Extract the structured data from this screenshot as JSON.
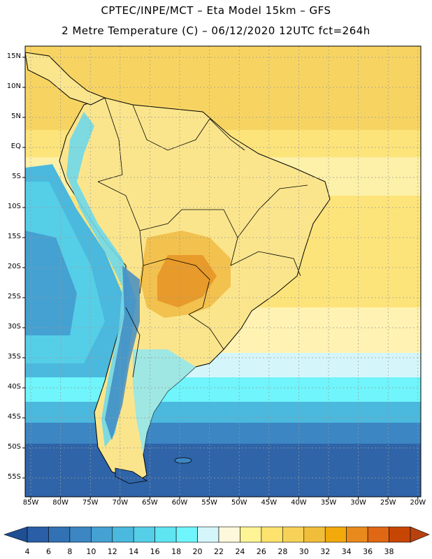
{
  "header": {
    "line1": "CPTEC/INPE/MCT –  Eta Model 15km – GFS",
    "line2": "2 Metre Temperature (C) – 06/12/2020 12UTC fct=264h"
  },
  "map": {
    "lat_labels": [
      "15N",
      "10N",
      "5N",
      "EQ",
      "5S",
      "10S",
      "15S",
      "20S",
      "25S",
      "30S",
      "35S",
      "40S",
      "45S",
      "50S",
      "55S"
    ],
    "lon_labels": [
      "85W",
      "80W",
      "75W",
      "70W",
      "65W",
      "60W",
      "55W",
      "50W",
      "45W",
      "40W",
      "35W",
      "30W",
      "25W",
      "20W"
    ],
    "colors": {
      "ocean_south_deep": "#2f64a8",
      "ocean_south": "#3b82c0",
      "ocean_mid": "#46a9d6",
      "ocean_cyan": "#56d3ec",
      "ocean_light": "#8ee8f2",
      "tropical_ocean": "#fde47a",
      "land_warm": "#fbe58c",
      "land_hot": "#f2c14e",
      "land_hottest": "#e89a2a",
      "andes": "#6fd8ea"
    }
  },
  "colorbar": {
    "labels": [
      "4",
      "6",
      "8",
      "10",
      "12",
      "14",
      "16",
      "18",
      "20",
      "22",
      "24",
      "26",
      "28",
      "30",
      "32",
      "34",
      "36",
      "38"
    ],
    "colors": [
      "#2a5ea6",
      "#3271b4",
      "#3b86c3",
      "#44a1d2",
      "#4bb8dd",
      "#55cfe8",
      "#5fe4f2",
      "#6ff5fb",
      "#d4f6fb",
      "#fff7dc",
      "#fff495",
      "#fde36d",
      "#f7d25a",
      "#f0be3a",
      "#f1a90c",
      "#e98a1c",
      "#e06713",
      "#c84604"
    ],
    "end_colors": {
      "low": "#1f4f93",
      "high": "#b8420f"
    }
  }
}
